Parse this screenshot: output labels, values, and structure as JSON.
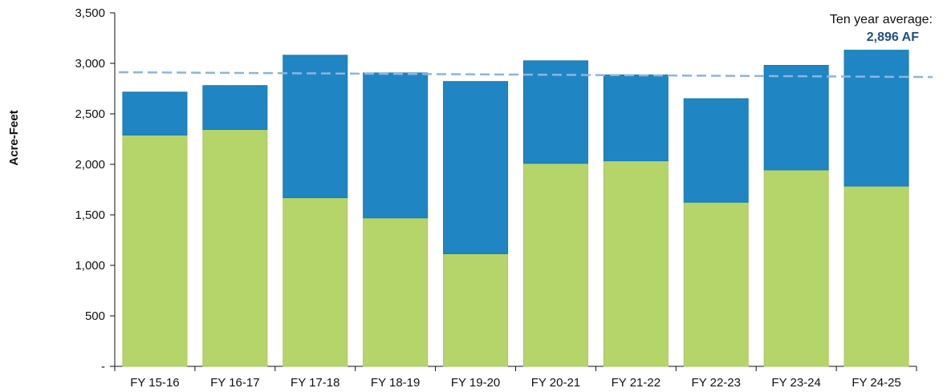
{
  "chart_data": {
    "type": "bar",
    "stacked": true,
    "categories": [
      "FY 15-16",
      "FY 16-17",
      "FY 17-18",
      "FY 18-19",
      "FY 19-20",
      "FY 20-21",
      "FY 21-22",
      "FY 22-23",
      "FY 23-24",
      "FY 24-25"
    ],
    "series": [
      {
        "values": [
          2290,
          2345,
          1670,
          1470,
          1115,
          2010,
          2035,
          1625,
          1945,
          1785
        ],
        "color": "#b5d56a"
      },
      {
        "values": [
          425,
          435,
          1410,
          1435,
          1705,
          1015,
          850,
          1025,
          1035,
          1345
        ],
        "color": "#1f86c3"
      }
    ],
    "totals": [
      2715,
      2780,
      3080,
      2905,
      2820,
      3025,
      2885,
      2650,
      2980,
      3130
    ],
    "ylabel": "Acre-Feet",
    "ylim": [
      0,
      3500
    ],
    "yticks": [
      0,
      500,
      1000,
      1500,
      2000,
      2500,
      3000,
      3500
    ],
    "ytick_labels": [
      "-",
      "500",
      "1,000",
      "1,500",
      "2,000",
      "2,500",
      "3,000",
      "3,500"
    ],
    "grid": false,
    "average_line": {
      "value": 2896,
      "label": "Ten year average:",
      "value_label": "2,896 AF",
      "color": "#8db4e2",
      "value_color": "#1f4e8c",
      "style": "dashed"
    }
  }
}
